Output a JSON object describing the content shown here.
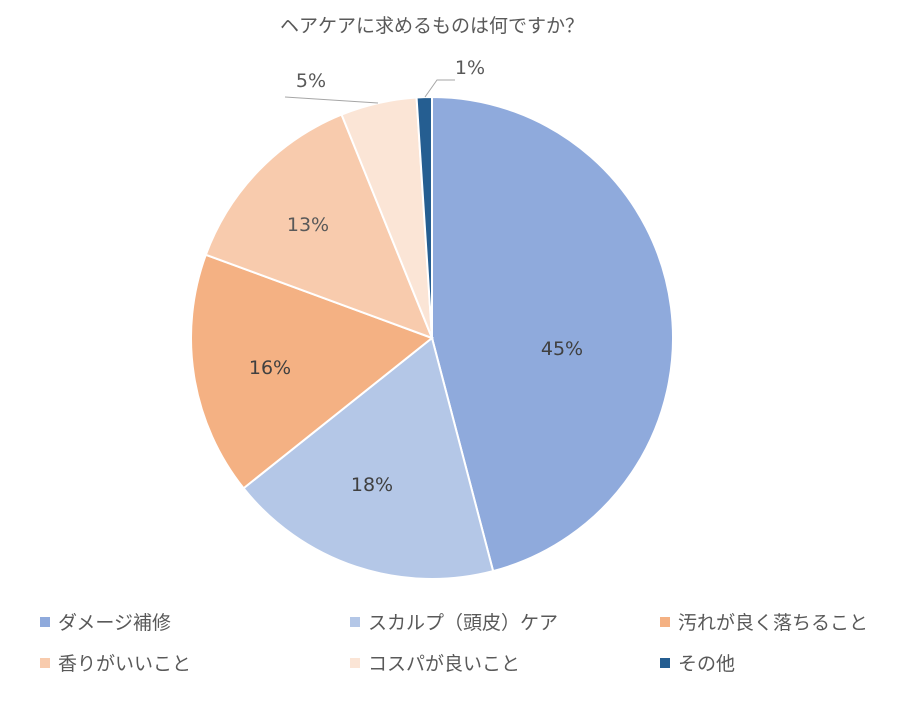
{
  "chart_data": {
    "type": "pie",
    "title": "ヘアケアに求めるものは何ですか？",
    "slices": [
      {
        "label": "ダメージ補修",
        "value": 45,
        "display": "45%",
        "color": "#8FAADC"
      },
      {
        "label": "スカルプ（頭皮）ケア",
        "value": 18,
        "display": "18%",
        "color": "#B4C7E7"
      },
      {
        "label": "汚れが良く落ちること",
        "value": 16,
        "display": "16%",
        "color": "#F4B183"
      },
      {
        "label": "香りがいいこと",
        "value": 13,
        "display": "13%",
        "color": "#F8CBAD"
      },
      {
        "label": "コスパが良いこと",
        "value": 5,
        "display": "5%",
        "color": "#FBE5D6"
      },
      {
        "label": "その他",
        "value": 1,
        "display": "1%",
        "color": "#255E91"
      }
    ],
    "legend_position": "bottom"
  }
}
